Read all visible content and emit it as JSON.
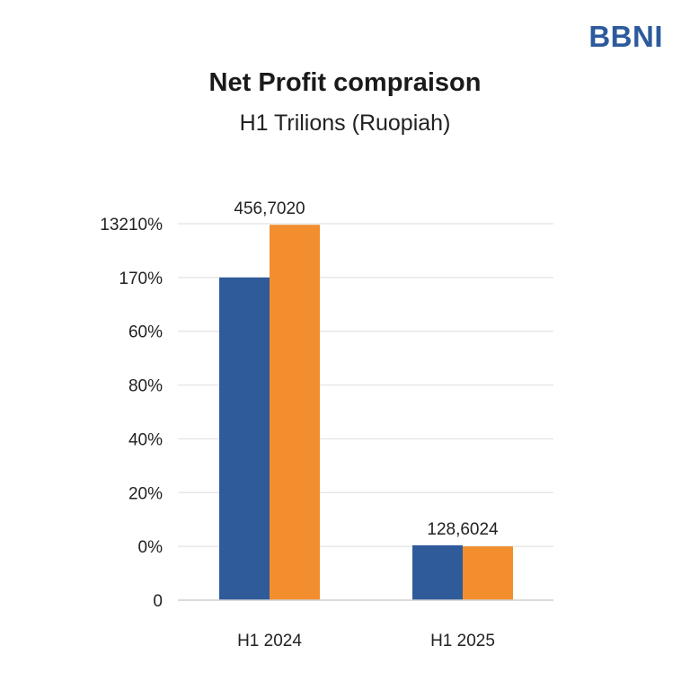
{
  "brand": {
    "logo_text": "BBNI",
    "logo_color": "#2c5a9c"
  },
  "chart_data": {
    "type": "bar",
    "title": "Net Profit compraison",
    "subtitle": "H1 Trilions (Ruopiah)",
    "categories": [
      "H1 2024",
      "H1 2025"
    ],
    "y_tick_labels": [
      "0",
      "0%",
      "20%",
      "40%",
      "80%",
      "60%",
      "170%",
      "13210%"
    ],
    "y_tick_values": [
      0,
      1,
      2,
      3,
      4,
      5,
      6,
      7
    ],
    "ylim": [
      0,
      7
    ],
    "grid": true,
    "series": [
      {
        "color": "#2f5b9b",
        "values": [
          6.0,
          1.02
        ]
      },
      {
        "color": "#f28e2e",
        "values": [
          6.98,
          1.0
        ]
      }
    ],
    "data_labels": [
      {
        "category_index": 0,
        "text": "456,7020"
      },
      {
        "category_index": 1,
        "text": "128,6024"
      }
    ]
  }
}
